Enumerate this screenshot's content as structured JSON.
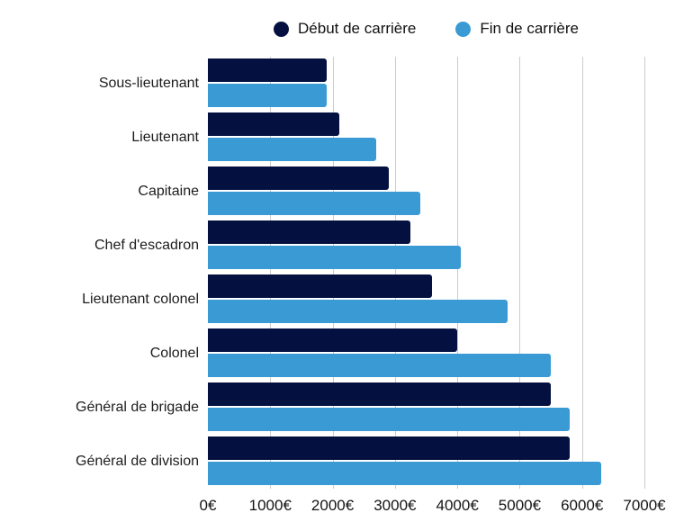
{
  "legend": {
    "items": [
      {
        "label": "Début de carrière",
        "color": "#041140"
      },
      {
        "label": "Fin de carrière",
        "color": "#3A9AD3"
      }
    ],
    "position": "top"
  },
  "chart_data": {
    "type": "bar",
    "orientation": "horizontal",
    "title": "",
    "xlabel": "",
    "ylabel": "",
    "categories": [
      "Sous-lieutenant",
      "Lieutenant",
      "Capitaine",
      "Chef d'escadron",
      "Lieutenant colonel",
      "Colonel",
      "Général de brigade",
      "Général de division"
    ],
    "series": [
      {
        "name": "Début de carrière",
        "color": "#041140",
        "values": [
          1900,
          2100,
          2900,
          3250,
          3600,
          4000,
          5500,
          5800
        ]
      },
      {
        "name": "Fin de carrière",
        "color": "#3A9AD3",
        "values": [
          1900,
          2700,
          3400,
          4050,
          4800,
          5500,
          5800,
          6300
        ]
      }
    ],
    "xlim": [
      0,
      7000
    ],
    "x_tick_values": [
      0,
      1000,
      2000,
      3000,
      4000,
      5000,
      6000,
      7000
    ],
    "x_tick_labels": [
      "0€",
      "1000€",
      "2000€",
      "3000€",
      "4000€",
      "5000€",
      "6000€",
      "7000€"
    ],
    "grid": true,
    "gridline_color": "#cccccc",
    "legend_position": "top",
    "currency_suffix": "€"
  }
}
